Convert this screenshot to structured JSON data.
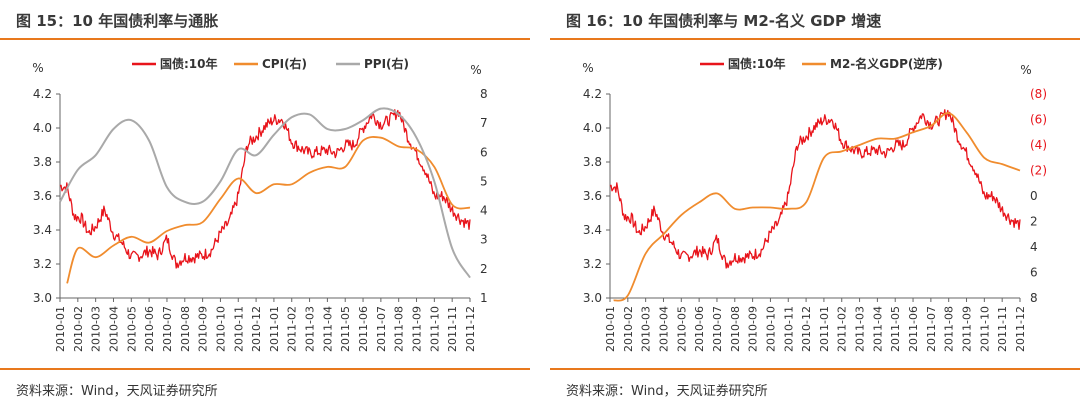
{
  "panels": [
    {
      "title": "图 15：10 年国债利率与通胀",
      "source": "资料来源：Wind，天风证券研究所",
      "unit_left": "%",
      "unit_right": "%",
      "chart_data": {
        "type": "line",
        "x_ticks": [
          "2010-01",
          "2010-02",
          "2010-03",
          "2010-04",
          "2010-05",
          "2010-06",
          "2010-07",
          "2010-08",
          "2010-09",
          "2010-10",
          "2010-11",
          "2010-12",
          "2011-01",
          "2011-02",
          "2011-03",
          "2011-04",
          "2011-05",
          "2011-06",
          "2011-07",
          "2011-08",
          "2011-09",
          "2011-10",
          "2011-11",
          "2011-12"
        ],
        "x_tick_labels": [
          "2010-01",
          "2010-02",
          "2010-03",
          "2010-04",
          "2010-05",
          "2010-06",
          "2010-07",
          "2010-08",
          "2010-09",
          "2010-10",
          "2010-11",
          "2010-12",
          "2011-01",
          "2011-02",
          "2011-03",
          "2011-04",
          "2011-05",
          "2011-06",
          "2011-07",
          "2011-08",
          "2011-09",
          "2011-10",
          "2011-11",
          "2011-12"
        ],
        "y_left": {
          "min": 3.0,
          "max": 4.2,
          "ticks": [
            "3.0",
            "3.2",
            "3.4",
            "3.6",
            "3.8",
            "4.0",
            "4.2"
          ]
        },
        "y_right": {
          "min": 1,
          "max": 8,
          "ticks": [
            "1",
            "2",
            "3",
            "4",
            "5",
            "6",
            "7",
            "8"
          ]
        },
        "series": [
          {
            "name": "国债:10年",
            "axis": "left",
            "color": "#e8141b",
            "width": 1.3,
            "noisy": true,
            "x": [
              0,
              0.4,
              0.8,
              1.2,
              1.6,
              2.0,
              2.5,
              3.0,
              3.5,
              4.0,
              4.5,
              5.0,
              5.5,
              6.0,
              6.5,
              7.0,
              7.5,
              8.0,
              8.5,
              9.0,
              9.5,
              10.0,
              10.5,
              11.0,
              11.5,
              12.0,
              12.5,
              13.0,
              13.5,
              14.0,
              14.5,
              15.0,
              15.5,
              16.0,
              16.5,
              17.0,
              17.5,
              18.0,
              18.5,
              19.0,
              19.5,
              20.0,
              20.5,
              21.0,
              21.5,
              22.0,
              22.5,
              23.0
            ],
            "values": [
              3.66,
              3.65,
              3.48,
              3.47,
              3.38,
              3.42,
              3.52,
              3.38,
              3.32,
              3.24,
              3.25,
              3.28,
              3.25,
              3.35,
              3.2,
              3.24,
              3.24,
              3.25,
              3.28,
              3.38,
              3.45,
              3.6,
              3.9,
              3.95,
              4.01,
              4.05,
              4.05,
              3.92,
              3.88,
              3.85,
              3.86,
              3.87,
              3.85,
              3.9,
              3.9,
              4.0,
              4.08,
              4.02,
              4.05,
              4.1,
              3.95,
              3.85,
              3.75,
              3.6,
              3.6,
              3.52,
              3.46,
              3.43
            ]
          },
          {
            "name": "CPI(右)",
            "axis": "right",
            "color": "#f08c2e",
            "width": 1.8,
            "x": [
              0.4,
              1,
              2,
              3,
              4,
              5,
              6,
              7,
              8,
              9,
              10,
              11,
              12,
              13,
              14,
              15,
              16,
              17,
              18,
              19,
              20,
              21,
              22,
              23
            ],
            "values": [
              1.5,
              2.7,
              2.4,
              2.8,
              3.1,
              2.9,
              3.3,
              3.5,
              3.6,
              4.4,
              5.1,
              4.6,
              4.9,
              4.9,
              5.3,
              5.5,
              5.5,
              6.4,
              6.5,
              6.2,
              6.1,
              5.5,
              4.2,
              4.1
            ]
          },
          {
            "name": "PPI(右)",
            "axis": "right",
            "color": "#a9a9a9",
            "width": 2,
            "x": [
              0,
              1,
              2,
              3,
              4,
              5,
              6,
              7,
              8,
              9,
              10,
              11,
              12,
              13,
              14,
              15,
              16,
              17,
              18,
              19,
              20,
              21,
              22,
              23
            ],
            "values": [
              4.3,
              5.4,
              5.9,
              6.8,
              7.1,
              6.4,
              4.8,
              4.3,
              4.3,
              5.0,
              6.1,
              5.9,
              6.6,
              7.2,
              7.3,
              6.8,
              6.8,
              7.1,
              7.5,
              7.3,
              6.5,
              5.0,
              2.7,
              1.7
            ]
          }
        ]
      }
    },
    {
      "title": "图 16：10 年国债利率与 M2-名义 GDP 增速",
      "source": "资料来源：Wind，天风证券研究所",
      "unit_left": "%",
      "unit_right": "%",
      "chart_data": {
        "type": "line",
        "x_ticks": [
          "2010-01",
          "2010-02",
          "2010-03",
          "2010-04",
          "2010-05",
          "2010-06",
          "2010-07",
          "2010-08",
          "2010-09",
          "2010-10",
          "2010-11",
          "2010-12",
          "2011-01",
          "2011-02",
          "2011-03",
          "2011-04",
          "2011-05",
          "2011-06",
          "2011-07",
          "2011-08",
          "2011-09",
          "2011-10",
          "2011-11",
          "2011-12"
        ],
        "x_tick_labels": [
          "2010-01",
          "2010-02",
          "2010-03",
          "2010-04",
          "2010-05",
          "2010-06",
          "2010-07",
          "2010-08",
          "2010-09",
          "2010-10",
          "2010-11",
          "2010-12",
          "2011-01",
          "2011-02",
          "2011-03",
          "2011-04",
          "2011-05",
          "2011-06",
          "2011-07",
          "2011-08",
          "2011-09",
          "2011-10",
          "2011-11",
          "2011-12"
        ],
        "y_left": {
          "min": 3.0,
          "max": 4.2,
          "ticks": [
            "3.0",
            "3.2",
            "3.4",
            "3.6",
            "3.8",
            "4.0",
            "4.2"
          ]
        },
        "y_right": {
          "min": -8,
          "max": 8,
          "inverted": true,
          "ticks": [
            "(8)",
            "(6)",
            "(4)",
            "(2)",
            "0",
            "2",
            "4",
            "6",
            "8"
          ],
          "tick_values": [
            -8,
            -6,
            -4,
            -2,
            0,
            2,
            4,
            6,
            8
          ],
          "negative_color": "#e8141b"
        },
        "series": [
          {
            "name": "国债:10年",
            "axis": "left",
            "color": "#e8141b",
            "width": 1.3,
            "noisy": true,
            "x": [
              0,
              0.4,
              0.8,
              1.2,
              1.6,
              2.0,
              2.5,
              3.0,
              3.5,
              4.0,
              4.5,
              5.0,
              5.5,
              6.0,
              6.5,
              7.0,
              7.5,
              8.0,
              8.5,
              9.0,
              9.5,
              10.0,
              10.5,
              11.0,
              11.5,
              12.0,
              12.5,
              13.0,
              13.5,
              14.0,
              14.5,
              15.0,
              15.5,
              16.0,
              16.5,
              17.0,
              17.5,
              18.0,
              18.5,
              19.0,
              19.5,
              20.0,
              20.5,
              21.0,
              21.5,
              22.0,
              22.5,
              23.0
            ],
            "values": [
              3.66,
              3.65,
              3.48,
              3.47,
              3.38,
              3.42,
              3.52,
              3.38,
              3.32,
              3.24,
              3.25,
              3.28,
              3.25,
              3.35,
              3.2,
              3.24,
              3.24,
              3.25,
              3.28,
              3.38,
              3.45,
              3.6,
              3.9,
              3.95,
              4.01,
              4.05,
              4.05,
              3.92,
              3.88,
              3.85,
              3.86,
              3.87,
              3.85,
              3.9,
              3.9,
              4.0,
              4.08,
              4.02,
              4.05,
              4.1,
              3.95,
              3.85,
              3.75,
              3.6,
              3.6,
              3.52,
              3.46,
              3.43
            ]
          },
          {
            "name": "M2-名义GDP(逆序)",
            "axis": "right",
            "color": "#f08c2e",
            "width": 1.8,
            "x": [
              0.2,
              1,
              2,
              3,
              4,
              5,
              6,
              7,
              8,
              9,
              10,
              11,
              12,
              13,
              14,
              15,
              16,
              17,
              18,
              19,
              20,
              21,
              22,
              23
            ],
            "values": [
              8.2,
              7.8,
              4.5,
              3.0,
              1.5,
              0.5,
              -0.2,
              1.0,
              0.9,
              0.9,
              1.0,
              0.5,
              -3.0,
              -3.5,
              -4.0,
              -4.5,
              -4.5,
              -5.0,
              -5.5,
              -6.5,
              -5.0,
              -3.0,
              -2.5,
              -2.0
            ]
          }
        ]
      }
    }
  ]
}
